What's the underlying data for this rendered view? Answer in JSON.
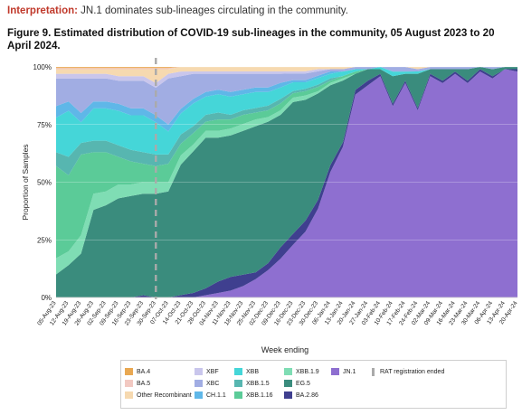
{
  "interpretation": {
    "lead": "Interpretation:",
    "text": "JN.1 dominates sub-lineages circulating in the community."
  },
  "figure_title": "Figure 9. Estimated distribution of COVID-19 sub-lineages in the community, 05 August 2023 to 20 April 2024.",
  "chart_data": {
    "type": "area",
    "stacked": true,
    "normalized": true,
    "ylabel": "Proportion of Samples",
    "xlabel": "Week ending",
    "y_ticks": [
      "0%",
      "25%",
      "50%",
      "75%",
      "100%"
    ],
    "ylim": [
      0,
      1
    ],
    "grid": "horizontal",
    "categories": [
      "05-Aug-23",
      "12-Aug-23",
      "19-Aug-23",
      "26-Aug-23",
      "02-Sep-23",
      "09-Sep-23",
      "16-Sep-23",
      "23-Sep-23",
      "30-Sep-23",
      "07-Oct-23",
      "14-Oct-23",
      "21-Oct-23",
      "28-Oct-23",
      "04-Nov-23",
      "11-Nov-23",
      "18-Nov-23",
      "25-Nov-23",
      "02-Dec-23",
      "09-Dec-23",
      "16-Dec-23",
      "23-Dec-23",
      "30-Dec-23",
      "06-Jan-24",
      "13-Jan-24",
      "20-Jan-24",
      "27-Jan-24",
      "03-Feb-24",
      "10-Feb-24",
      "17-Feb-24",
      "24-Feb-24",
      "02-Mar-24",
      "09-Mar-24",
      "16-Mar-24",
      "23-Mar-24",
      "30-Mar-24",
      "06-Apr-24",
      "13-Apr-24",
      "20-Apr-24"
    ],
    "series": [
      {
        "name": "JN.1",
        "color": "#8e6fd0",
        "values": [
          0,
          0,
          0,
          0,
          0,
          0,
          0,
          0,
          0,
          0,
          0,
          0,
          0.01,
          0.02,
          0.03,
          0.05,
          0.08,
          0.12,
          0.17,
          0.24,
          0.3,
          0.4,
          0.55,
          0.66,
          0.88,
          0.92,
          0.96,
          0.83,
          0.93,
          0.82,
          0.96,
          0.93,
          0.97,
          0.93,
          0.98,
          0.95,
          0.99,
          0.98
        ]
      },
      {
        "name": "BA.2.86",
        "color": "#3f3f8f",
        "values": [
          0,
          0,
          0,
          0,
          0,
          0,
          0,
          0.01,
          0,
          0,
          0.01,
          0.02,
          0.03,
          0.05,
          0.06,
          0.05,
          0.03,
          0.03,
          0.05,
          0.05,
          0.05,
          0.04,
          0.03,
          0.02,
          0.02,
          0.02,
          0.01,
          0.01,
          0.01,
          0.01,
          0.01,
          0.01,
          0.01,
          0.01,
          0.01,
          0.01,
          0,
          0.01
        ]
      },
      {
        "name": "EG.5",
        "color": "#3a8c7d",
        "values": [
          0.1,
          0.14,
          0.19,
          0.38,
          0.4,
          0.43,
          0.44,
          0.44,
          0.45,
          0.46,
          0.56,
          0.62,
          0.66,
          0.63,
          0.62,
          0.63,
          0.64,
          0.62,
          0.58,
          0.6,
          0.55,
          0.48,
          0.35,
          0.27,
          0.07,
          0.05,
          0.02,
          0.12,
          0.03,
          0.15,
          0.02,
          0.05,
          0.01,
          0.05,
          0.01,
          0.03,
          0.01,
          0.01
        ]
      },
      {
        "name": "XBB.1.9",
        "color": "#7fddb4",
        "values": [
          0.07,
          0.06,
          0.08,
          0.07,
          0.06,
          0.06,
          0.05,
          0.05,
          0.05,
          0.04,
          0.04,
          0.03,
          0.03,
          0.03,
          0.03,
          0.03,
          0.03,
          0.02,
          0.02,
          0.02,
          0.02,
          0.01,
          0.01,
          0.01,
          0,
          0,
          0,
          0,
          0,
          0,
          0,
          0,
          0,
          0,
          0,
          0,
          0,
          0
        ]
      },
      {
        "name": "XBB.1.16",
        "color": "#5bcb98",
        "values": [
          0.4,
          0.33,
          0.35,
          0.18,
          0.17,
          0.12,
          0.1,
          0.08,
          0.07,
          0.08,
          0.05,
          0.05,
          0.04,
          0.05,
          0.04,
          0.04,
          0.03,
          0.03,
          0.03,
          0.02,
          0.02,
          0.02,
          0.01,
          0.01,
          0.01,
          0,
          0,
          0,
          0,
          0,
          0,
          0,
          0,
          0,
          0,
          0,
          0,
          0
        ]
      },
      {
        "name": "XBB.1.5",
        "color": "#57b6b0",
        "values": [
          0.06,
          0.08,
          0.05,
          0.05,
          0.05,
          0.05,
          0.05,
          0.05,
          0.05,
          0.04,
          0.04,
          0.03,
          0.03,
          0.03,
          0.02,
          0.02,
          0.02,
          0.02,
          0.02,
          0.01,
          0.01,
          0.01,
          0.01,
          0,
          0,
          0,
          0,
          0,
          0,
          0,
          0,
          0,
          0,
          0,
          0,
          0,
          0,
          0
        ]
      },
      {
        "name": "XBB",
        "color": "#45d6d8",
        "values": [
          0.15,
          0.2,
          0.09,
          0.14,
          0.14,
          0.15,
          0.15,
          0.16,
          0.14,
          0.1,
          0.09,
          0.1,
          0.08,
          0.08,
          0.08,
          0.07,
          0.07,
          0.06,
          0.05,
          0.04,
          0.03,
          0.03,
          0.02,
          0.02,
          0.01,
          0,
          0.01,
          0.02,
          0.01,
          0.01,
          0,
          0,
          0,
          0,
          0,
          0,
          0,
          0
        ]
      },
      {
        "name": "CH.1.1",
        "color": "#5fb7e8",
        "values": [
          0.05,
          0.04,
          0.04,
          0.03,
          0.03,
          0.03,
          0.03,
          0.03,
          0.03,
          0.03,
          0.02,
          0.02,
          0.02,
          0.02,
          0.02,
          0.02,
          0.02,
          0.02,
          0.02,
          0.01,
          0.01,
          0.01,
          0.01,
          0,
          0,
          0,
          0,
          0,
          0,
          0,
          0,
          0,
          0,
          0,
          0,
          0,
          0,
          0
        ]
      },
      {
        "name": "XBC",
        "color": "#a1ade3",
        "values": [
          0.12,
          0.1,
          0.15,
          0.1,
          0.1,
          0.1,
          0.12,
          0.12,
          0.12,
          0.2,
          0.14,
          0.11,
          0.08,
          0.07,
          0.08,
          0.07,
          0.06,
          0.06,
          0.04,
          0.03,
          0.03,
          0.02,
          0.01,
          0.01,
          0.01,
          0.01,
          0,
          0.02,
          0.02,
          0.01,
          0.01,
          0.01,
          0.01,
          0.01,
          0,
          0.01,
          0,
          0
        ]
      },
      {
        "name": "XBF",
        "color": "#c9c6ec",
        "values": [
          0.02,
          0.02,
          0.02,
          0.02,
          0.02,
          0.02,
          0.02,
          0.02,
          0.02,
          0.02,
          0.02,
          0.01,
          0.01,
          0.01,
          0.01,
          0.01,
          0.01,
          0.01,
          0.01,
          0.01,
          0.01,
          0.01,
          0,
          0,
          0,
          0,
          0,
          0,
          0,
          0,
          0,
          0,
          0,
          0,
          0,
          0,
          0,
          0
        ]
      },
      {
        "name": "Other Recombinant",
        "color": "#f6d9b0",
        "values": [
          0.02,
          0.02,
          0.02,
          0.02,
          0.02,
          0.03,
          0.03,
          0.03,
          0.06,
          0.02,
          0.02,
          0.02,
          0.02,
          0.02,
          0.02,
          0.02,
          0.02,
          0.02,
          0.02,
          0.02,
          0.02,
          0.01,
          0.01,
          0.01,
          0,
          0,
          0,
          0,
          0,
          0.01,
          0,
          0,
          0,
          0,
          0,
          0,
          0,
          0
        ]
      },
      {
        "name": "BA.5",
        "color": "#f2c9c2",
        "values": [
          0.005,
          0.005,
          0.005,
          0.005,
          0.005,
          0.005,
          0.005,
          0.005,
          0.005,
          0.005,
          0,
          0,
          0,
          0,
          0,
          0,
          0,
          0,
          0,
          0,
          0,
          0,
          0,
          0,
          0,
          0,
          0,
          0,
          0,
          0,
          0,
          0,
          0,
          0,
          0,
          0,
          0,
          0
        ]
      },
      {
        "name": "BA.4",
        "color": "#e9a852",
        "values": [
          0.005,
          0.005,
          0.005,
          0.005,
          0.005,
          0.005,
          0.005,
          0.005,
          0.005,
          0.005,
          0,
          0,
          0,
          0,
          0,
          0,
          0,
          0,
          0,
          0,
          0,
          0,
          0,
          0,
          0,
          0,
          0,
          0,
          0,
          0,
          0,
          0,
          0,
          0,
          0,
          0,
          0,
          0
        ]
      }
    ],
    "annotation": {
      "label": "RAT registration ended",
      "at_category": "30-Sep-23",
      "style": "dashed vertical line",
      "color": "#aaaaaa"
    },
    "legend": {
      "placement": "bottom",
      "columns": [
        [
          "BA.4",
          "BA.5",
          "Other Recombinant"
        ],
        [
          "XBF",
          "XBC",
          "CH.1.1"
        ],
        [
          "XBB",
          "XBB.1.5",
          "XBB.1.16"
        ],
        [
          "XBB.1.9",
          "EG.5",
          "BA.2.86"
        ],
        [
          "JN.1"
        ],
        [
          "RAT registration ended"
        ]
      ]
    }
  }
}
